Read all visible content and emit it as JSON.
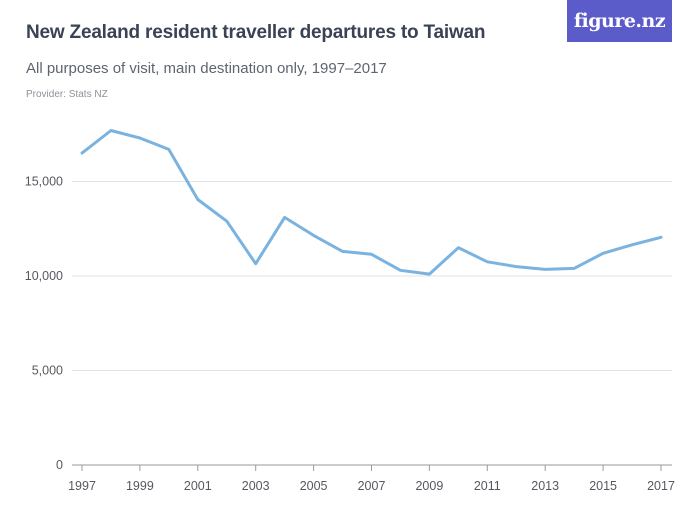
{
  "header": {
    "title": "New Zealand resident traveller departures to Taiwan",
    "subtitle": "All purposes of visit, main destination only, 1997–2017",
    "provider": "Provider: Stats NZ"
  },
  "logo": {
    "text": "figure.nz",
    "color": "#5b5bc9"
  },
  "chart_data": {
    "type": "line",
    "title": "New Zealand resident traveller departures to Taiwan",
    "subtitle": "All purposes of visit, main destination only, 1997–2017",
    "xlabel": "",
    "ylabel": "",
    "x": [
      1997,
      1998,
      1999,
      2000,
      2001,
      2002,
      2003,
      2004,
      2005,
      2006,
      2007,
      2008,
      2009,
      2010,
      2011,
      2012,
      2013,
      2014,
      2015,
      2016,
      2017
    ],
    "series": [
      {
        "values": [
          16500,
          17700,
          17300,
          16700,
          14050,
          12900,
          10650,
          13100,
          12150,
          11300,
          11150,
          10300,
          10100,
          11500,
          10750,
          10500,
          10350,
          10400,
          11200,
          11650,
          12050
        ],
        "color": "#7ab3e0"
      }
    ],
    "ylim": [
      0,
      20000
    ],
    "yticks": [
      0,
      5000,
      10000,
      15000
    ],
    "ytick_labels": [
      "0",
      "5,000",
      "10,000",
      "15,000"
    ],
    "xticks": [
      1997,
      1999,
      2001,
      2003,
      2005,
      2007,
      2009,
      2011,
      2013,
      2015,
      2017
    ],
    "xtick_labels": [
      "1997",
      "1999",
      "2001",
      "2003",
      "2005",
      "2007",
      "2009",
      "2011",
      "2013",
      "2015",
      "2017"
    ],
    "grid": true,
    "grid_color": "#e3e3e3",
    "legend": "none"
  }
}
